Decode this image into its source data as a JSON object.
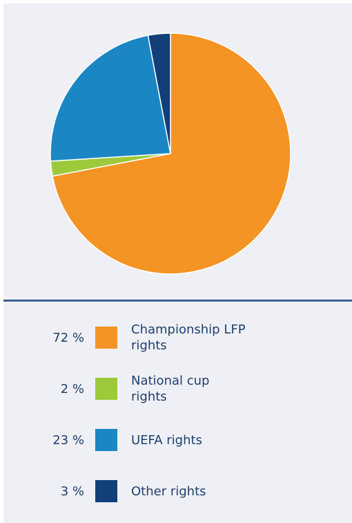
{
  "chart_data": {
    "type": "pie",
    "categories": [
      "Championship LFP rights",
      "National cup rights",
      "UEFA rights",
      "Other rights"
    ],
    "values": [
      72,
      2,
      23,
      3
    ],
    "value_labels": [
      "72 %",
      "2 %",
      "23 %",
      "3 %"
    ],
    "colors": [
      "#f39425",
      "#9dc93b",
      "#1b86c4",
      "#123f78"
    ]
  }
}
